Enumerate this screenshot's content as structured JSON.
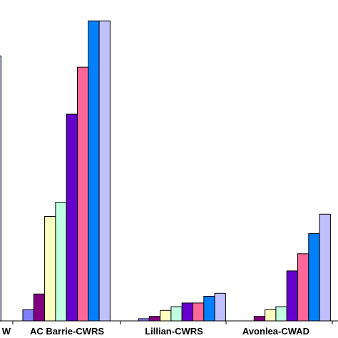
{
  "chart_data": {
    "type": "bar",
    "title": "",
    "xlabel": "",
    "ylabel": "",
    "grid": false,
    "legend": "none",
    "categories": [
      "W",
      "AC Barrie-CWRS",
      "Lillian-CWRS",
      "Avonlea-CWAD"
    ],
    "series_colors": [
      "#8080ff",
      "#800080",
      "#ffffc0",
      "#c0ffe0",
      "#6600cc",
      "#ff6699",
      "#0080ff",
      "#c0c0ff"
    ],
    "series": [
      {
        "values": [
          null,
          15,
          3,
          0
        ]
      },
      {
        "values": [
          null,
          36,
          6,
          6
        ]
      },
      {
        "values": [
          null,
          140,
          14,
          15
        ]
      },
      {
        "values": [
          null,
          159,
          19,
          19
        ]
      },
      {
        "values": [
          null,
          277,
          24,
          67
        ]
      },
      {
        "values": [
          null,
          340,
          24,
          90
        ]
      },
      {
        "values": [
          null,
          402,
          33,
          117
        ]
      },
      {
        "values": [
          355,
          402,
          37,
          143
        ]
      }
    ],
    "ylim": [
      0,
      430
    ]
  }
}
